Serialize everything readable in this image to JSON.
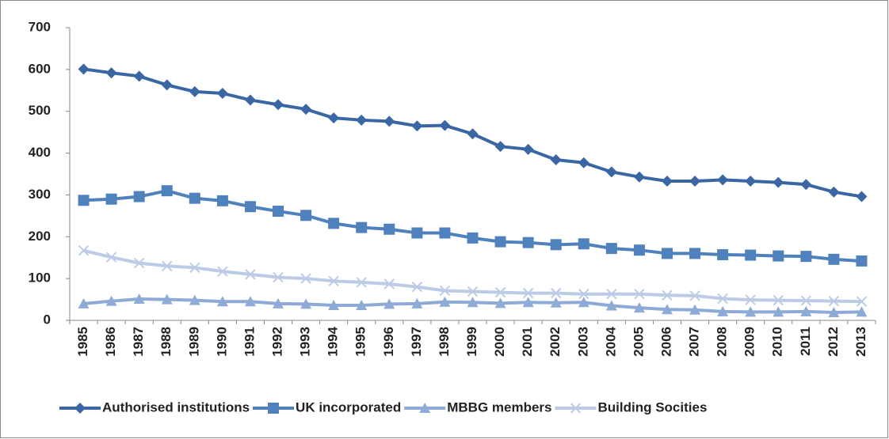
{
  "chart_data": {
    "type": "line",
    "categories": [
      "1985",
      "1986",
      "1987",
      "1988",
      "1989",
      "1990",
      "1991",
      "1992",
      "1993",
      "1994",
      "1995",
      "1996",
      "1997",
      "1998",
      "1999",
      "2000",
      "2001",
      "2002",
      "2003",
      "2004",
      "2005",
      "2006",
      "2007",
      "2008",
      "2009",
      "2010",
      "2011",
      "2012",
      "2013"
    ],
    "series": [
      {
        "name": "Authorised institutions",
        "color": "#3a67a4",
        "marker": "diamond",
        "values": [
          601,
          592,
          584,
          563,
          547,
          543,
          527,
          516,
          505,
          484,
          479,
          476,
          465,
          466,
          446,
          416,
          409,
          384,
          377,
          355,
          343,
          333,
          333,
          336,
          333,
          330,
          325,
          307,
          296
        ]
      },
      {
        "name": "UK incorporated",
        "color": "#4f81bd",
        "marker": "square",
        "values": [
          287,
          290,
          296,
          310,
          292,
          286,
          272,
          261,
          251,
          232,
          222,
          218,
          209,
          209,
          197,
          188,
          186,
          181,
          183,
          172,
          168,
          160,
          160,
          157,
          156,
          154,
          153,
          146,
          142
        ]
      },
      {
        "name": "MBBG members",
        "color": "#8eaad6",
        "marker": "triangle",
        "values": [
          40,
          46,
          51,
          50,
          48,
          45,
          45,
          40,
          39,
          36,
          36,
          39,
          40,
          44,
          43,
          41,
          43,
          42,
          43,
          35,
          30,
          26,
          25,
          21,
          20,
          20,
          21,
          19,
          20
        ]
      },
      {
        "name": "Building Socities",
        "color": "#bccbe6",
        "marker": "x",
        "values": [
          167,
          151,
          137,
          130,
          126,
          117,
          110,
          103,
          100,
          94,
          91,
          87,
          80,
          71,
          69,
          67,
          65,
          65,
          63,
          63,
          63,
          60,
          59,
          52,
          49,
          48,
          47,
          46,
          45
        ]
      }
    ],
    "ylim": [
      0,
      700
    ],
    "yticks": [
      0,
      100,
      200,
      300,
      400,
      500,
      600,
      700
    ],
    "legend": "bottom"
  }
}
